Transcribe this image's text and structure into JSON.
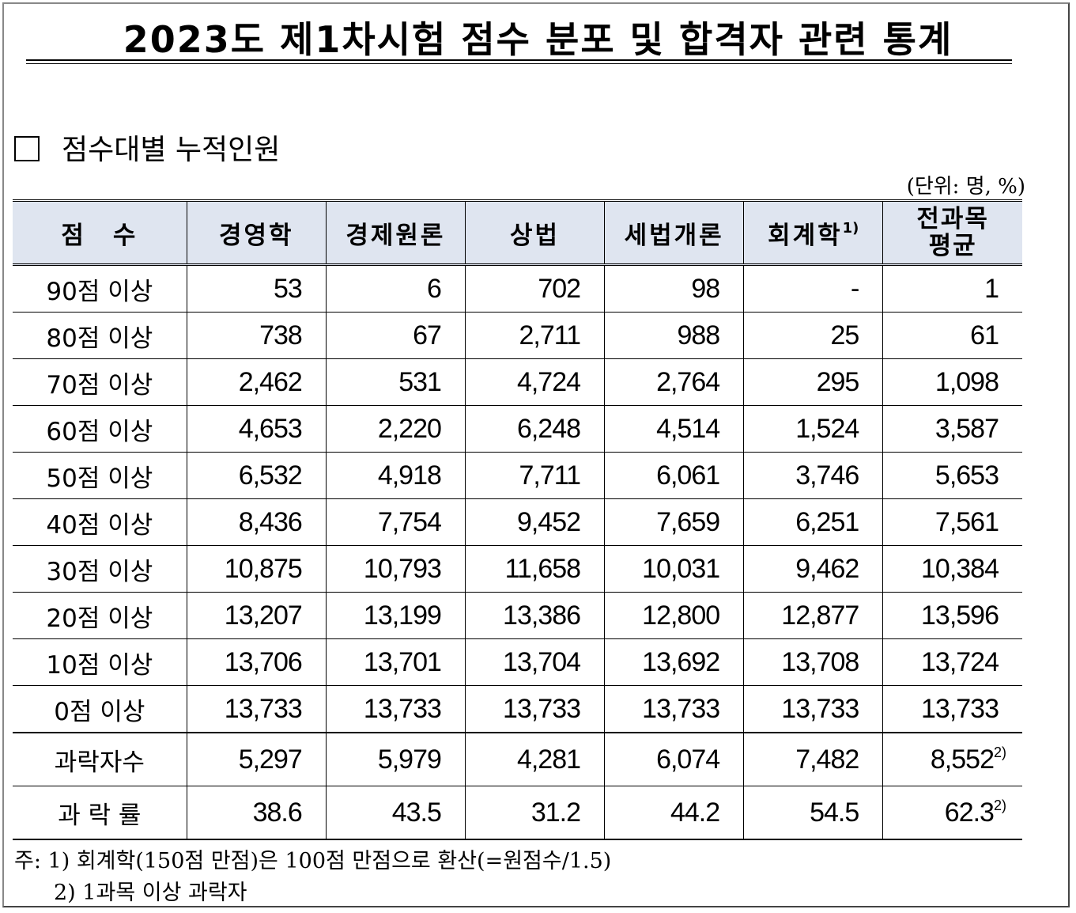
{
  "title": "2023도 제1차시험 점수 분포 및 합격자 관련 통계",
  "section_heading": "점수대별 누적인원",
  "unit_note": "(단위: 명, %)",
  "table": {
    "headers": [
      "점　수",
      "경영학",
      "경제원론",
      "상법",
      "세법개론",
      "회계학",
      "전과목",
      "평균"
    ],
    "header_footnote": "1)",
    "rows": [
      {
        "label": "90점 이상",
        "values": [
          "53",
          "6",
          "702",
          "98",
          "-",
          "1"
        ]
      },
      {
        "label": "80점 이상",
        "values": [
          "738",
          "67",
          "2,711",
          "988",
          "25",
          "61"
        ]
      },
      {
        "label": "70점 이상",
        "values": [
          "2,462",
          "531",
          "4,724",
          "2,764",
          "295",
          "1,098"
        ]
      },
      {
        "label": "60점 이상",
        "values": [
          "4,653",
          "2,220",
          "6,248",
          "4,514",
          "1,524",
          "3,587"
        ]
      },
      {
        "label": "50점 이상",
        "values": [
          "6,532",
          "4,918",
          "7,711",
          "6,061",
          "3,746",
          "5,653"
        ]
      },
      {
        "label": "40점 이상",
        "values": [
          "8,436",
          "7,754",
          "9,452",
          "7,659",
          "6,251",
          "7,561"
        ]
      },
      {
        "label": "30점 이상",
        "values": [
          "10,875",
          "10,793",
          "11,658",
          "10,031",
          "9,462",
          "10,384"
        ]
      },
      {
        "label": "20점 이상",
        "values": [
          "13,207",
          "13,199",
          "13,386",
          "12,800",
          "12,877",
          "13,596"
        ]
      },
      {
        "label": "10점 이상",
        "values": [
          "13,706",
          "13,701",
          "13,704",
          "13,692",
          "13,708",
          "13,724"
        ]
      },
      {
        "label": "0점 이상",
        "values": [
          "13,733",
          "13,733",
          "13,733",
          "13,733",
          "13,733",
          "13,733"
        ]
      }
    ],
    "summary": [
      {
        "label": "과락자수",
        "values": [
          "5,297",
          "5,979",
          "4,281",
          "6,074",
          "7,482",
          "8,552"
        ],
        "last_footnote": "2)"
      },
      {
        "label": "과 락 률",
        "values": [
          "38.6",
          "43.5",
          "31.2",
          "44.2",
          "54.5",
          "62.3"
        ],
        "last_footnote": "2)"
      }
    ]
  },
  "notes": [
    "주: 1) 회계학(150점 만점)은 100점 만점으로 환산(=원점수/1.5)",
    "2) 1과목 이상 과락자"
  ]
}
